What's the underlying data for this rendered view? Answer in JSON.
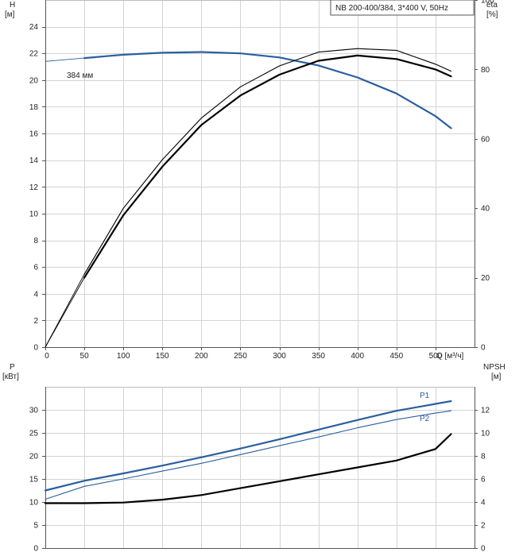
{
  "chart_data": [
    {
      "type": "line",
      "panel": "head-efficiency",
      "title": "NB 200-400/384, 3*400 V, 50Hz",
      "xlabel": "Q [м³/ч]",
      "xlim": [
        0,
        550
      ],
      "x_ticks": [
        0,
        50,
        100,
        150,
        200,
        250,
        300,
        350,
        400,
        450,
        500
      ],
      "left_axis": {
        "label_top": "H",
        "label_unit": "[м]",
        "ylim": [
          0,
          26
        ],
        "ticks": [
          0,
          2,
          4,
          6,
          8,
          10,
          12,
          14,
          16,
          18,
          20,
          22,
          24
        ]
      },
      "right_axis": {
        "label_top": "eta",
        "label_unit": "[%]",
        "ylim": [
          0,
          100
        ],
        "ticks": [
          0,
          20,
          40,
          60,
          80,
          100
        ]
      },
      "grid": true,
      "annotations": [
        "384 мм"
      ],
      "series": [
        {
          "color": "#2a5f9e",
          "axis": "left",
          "role": "head-extension",
          "x": [
            0,
            50
          ],
          "y": [
            21.4,
            21.65
          ]
        },
        {
          "color": "#2a5f9e",
          "axis": "left",
          "role": "head",
          "x": [
            50,
            100,
            150,
            200,
            250,
            300,
            350,
            400,
            450,
            500,
            520
          ],
          "y": [
            21.65,
            21.9,
            22.05,
            22.1,
            22.0,
            21.7,
            21.1,
            20.2,
            19.0,
            17.3,
            16.4
          ]
        },
        {
          "color": "#000000",
          "axis": "right",
          "role": "efficiency-extension",
          "x": [
            0,
            50
          ],
          "y": [
            0,
            20
          ]
        },
        {
          "color": "#000000",
          "axis": "right",
          "role": "efficiency",
          "x": [
            50,
            100,
            150,
            200,
            250,
            300,
            350,
            400,
            450,
            500,
            520
          ],
          "y": [
            20,
            38,
            52,
            64,
            72.5,
            78.5,
            82.5,
            84,
            83,
            80,
            78
          ]
        },
        {
          "color": "#000000",
          "axis": "right",
          "role": "efficiency-2-extension",
          "x": [
            0,
            50
          ],
          "y": [
            0,
            21
          ]
        },
        {
          "color": "#000000",
          "axis": "right",
          "role": "efficiency-2",
          "x": [
            50,
            100,
            150,
            200,
            250,
            300,
            350,
            400,
            450,
            500,
            520
          ],
          "y": [
            21,
            40,
            54,
            66,
            75,
            81,
            85,
            86,
            85.5,
            81.5,
            79.5
          ]
        }
      ]
    },
    {
      "type": "line",
      "panel": "power-npsh",
      "xlim": [
        0,
        550
      ],
      "left_axis": {
        "label_top": "P",
        "label_unit": "[кВт]",
        "ylim": [
          0,
          35
        ],
        "ticks": [
          0,
          5,
          10,
          15,
          20,
          25,
          30
        ]
      },
      "right_axis": {
        "label_top": "NPSH",
        "label_unit": "[м]",
        "ylim": [
          0,
          14
        ],
        "ticks": [
          0,
          2,
          4,
          6,
          8,
          10,
          12
        ]
      },
      "grid": true,
      "series": [
        {
          "name": "P1",
          "color": "#2a5f9e",
          "axis": "left",
          "x": [
            0,
            50,
            100,
            150,
            200,
            250,
            300,
            350,
            400,
            450,
            500,
            520
          ],
          "y": [
            12.5,
            14.6,
            16.2,
            17.9,
            19.7,
            21.6,
            23.6,
            25.7,
            27.8,
            29.8,
            31.3,
            31.9
          ]
        },
        {
          "name": "P2",
          "color": "#2a5f9e",
          "axis": "left",
          "x": [
            0,
            50,
            100,
            150,
            200,
            250,
            300,
            350,
            400,
            450,
            500,
            520
          ],
          "y": [
            10.6,
            13.4,
            15.0,
            16.7,
            18.4,
            20.3,
            22.2,
            24.1,
            26.1,
            27.9,
            29.3,
            29.8
          ]
        },
        {
          "color": "#000000",
          "axis": "right",
          "role": "npsh",
          "x": [
            0,
            50,
            100,
            150,
            200,
            250,
            300,
            350,
            400,
            450,
            500,
            520
          ],
          "y": [
            3.9,
            3.9,
            3.95,
            4.2,
            4.6,
            5.2,
            5.8,
            6.4,
            7.0,
            7.6,
            8.6,
            9.9
          ]
        }
      ]
    }
  ]
}
